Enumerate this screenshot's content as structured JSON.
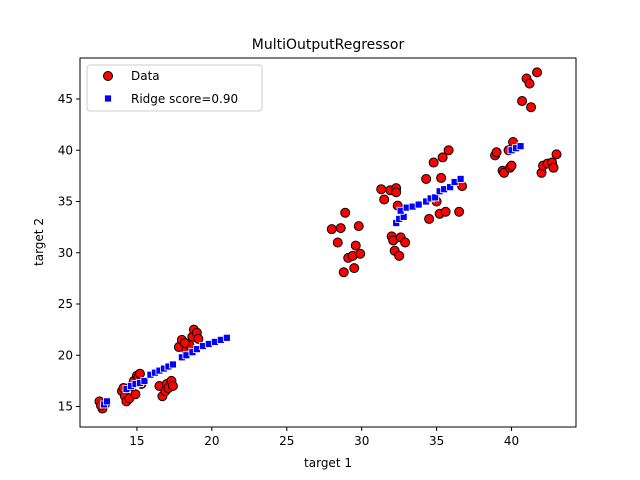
{
  "chart_data": {
    "type": "scatter",
    "title": "MultiOutputRegressor",
    "xlabel": "target 1",
    "ylabel": "target 2",
    "xlim": [
      11.2,
      44.3
    ],
    "ylim": [
      13.0,
      49.0
    ],
    "xticks": [
      15,
      20,
      25,
      30,
      35,
      40
    ],
    "yticks": [
      15,
      20,
      25,
      30,
      35,
      40,
      45
    ],
    "grid": false,
    "legend_position": "upper-left",
    "series": [
      {
        "name": "Data",
        "marker": "circle",
        "color": "#ff0000",
        "edgecolor": "#000000",
        "points": [
          [
            12.5,
            15.5
          ],
          [
            12.7,
            14.8
          ],
          [
            12.9,
            15.3
          ],
          [
            12.6,
            15.1
          ],
          [
            14.0,
            16.5
          ],
          [
            14.2,
            16.0
          ],
          [
            14.3,
            15.5
          ],
          [
            14.5,
            15.8
          ],
          [
            14.6,
            17.0
          ],
          [
            14.8,
            17.5
          ],
          [
            14.9,
            16.2
          ],
          [
            15.0,
            18.0
          ],
          [
            15.1,
            17.8
          ],
          [
            15.2,
            18.2
          ],
          [
            15.3,
            17.2
          ],
          [
            14.1,
            16.8
          ],
          [
            16.5,
            17.0
          ],
          [
            16.7,
            16.0
          ],
          [
            16.9,
            16.5
          ],
          [
            17.0,
            17.2
          ],
          [
            17.1,
            16.8
          ],
          [
            17.3,
            17.5
          ],
          [
            17.4,
            17.0
          ],
          [
            17.8,
            20.8
          ],
          [
            18.0,
            21.5
          ],
          [
            18.3,
            20.5
          ],
          [
            18.5,
            21.0
          ],
          [
            18.7,
            21.8
          ],
          [
            18.8,
            22.5
          ],
          [
            19.0,
            22.2
          ],
          [
            19.1,
            21.6
          ],
          [
            18.2,
            21.2
          ],
          [
            28.0,
            32.3
          ],
          [
            28.4,
            31.0
          ],
          [
            28.6,
            32.4
          ],
          [
            28.8,
            28.1
          ],
          [
            28.9,
            33.9
          ],
          [
            29.1,
            29.5
          ],
          [
            29.4,
            29.7
          ],
          [
            29.5,
            28.5
          ],
          [
            29.6,
            30.7
          ],
          [
            29.8,
            32.6
          ],
          [
            29.9,
            29.9
          ],
          [
            31.3,
            36.2
          ],
          [
            31.5,
            35.2
          ],
          [
            31.9,
            36.1
          ],
          [
            32.0,
            31.6
          ],
          [
            32.1,
            31.2
          ],
          [
            32.2,
            30.2
          ],
          [
            32.3,
            36.3
          ],
          [
            32.3,
            35.9
          ],
          [
            32.4,
            34.6
          ],
          [
            32.5,
            29.7
          ],
          [
            32.6,
            31.5
          ],
          [
            32.9,
            31.0
          ],
          [
            34.3,
            37.2
          ],
          [
            34.5,
            33.3
          ],
          [
            34.8,
            38.8
          ],
          [
            35.0,
            35.0
          ],
          [
            35.2,
            33.8
          ],
          [
            35.3,
            37.3
          ],
          [
            35.4,
            39.3
          ],
          [
            35.6,
            34.0
          ],
          [
            35.8,
            40.0
          ],
          [
            36.5,
            34.0
          ],
          [
            36.7,
            36.5
          ],
          [
            38.9,
            39.5
          ],
          [
            39.0,
            39.8
          ],
          [
            39.4,
            38.0
          ],
          [
            39.5,
            37.8
          ],
          [
            39.8,
            40.0
          ],
          [
            39.9,
            38.3
          ],
          [
            40.0,
            38.5
          ],
          [
            40.1,
            40.8
          ],
          [
            40.7,
            44.8
          ],
          [
            41.0,
            47.0
          ],
          [
            41.2,
            46.5
          ],
          [
            41.3,
            44.2
          ],
          [
            41.7,
            47.6
          ],
          [
            42.0,
            37.8
          ],
          [
            42.1,
            38.5
          ],
          [
            42.4,
            38.7
          ],
          [
            42.7,
            38.8
          ],
          [
            42.8,
            38.3
          ],
          [
            43.0,
            39.6
          ]
        ]
      },
      {
        "name": "Ridge score=0.90",
        "marker": "square",
        "color": "#0000ff",
        "edgecolor": "#ffffff",
        "points": [
          [
            12.8,
            15.2
          ],
          [
            13.0,
            15.5
          ],
          [
            14.3,
            16.7
          ],
          [
            14.6,
            17.0
          ],
          [
            14.9,
            17.2
          ],
          [
            15.2,
            17.3
          ],
          [
            15.5,
            17.5
          ],
          [
            15.9,
            18.1
          ],
          [
            16.2,
            18.3
          ],
          [
            16.5,
            18.5
          ],
          [
            16.8,
            18.7
          ],
          [
            17.1,
            18.9
          ],
          [
            17.4,
            19.1
          ],
          [
            18.0,
            19.8
          ],
          [
            18.3,
            20.0
          ],
          [
            18.7,
            20.3
          ],
          [
            19.0,
            20.6
          ],
          [
            19.4,
            20.9
          ],
          [
            19.8,
            21.1
          ],
          [
            20.2,
            21.3
          ],
          [
            20.6,
            21.5
          ],
          [
            21.0,
            21.7
          ],
          [
            32.3,
            32.9
          ],
          [
            32.5,
            33.3
          ],
          [
            32.8,
            33.5
          ],
          [
            32.6,
            34.1
          ],
          [
            33.0,
            34.4
          ],
          [
            33.4,
            34.5
          ],
          [
            33.8,
            34.7
          ],
          [
            34.3,
            35.0
          ],
          [
            34.6,
            35.3
          ],
          [
            34.9,
            35.4
          ],
          [
            35.2,
            36.0
          ],
          [
            35.5,
            36.2
          ],
          [
            35.9,
            36.4
          ],
          [
            36.2,
            36.9
          ],
          [
            36.6,
            37.2
          ],
          [
            40.0,
            40.0
          ],
          [
            40.3,
            40.2
          ],
          [
            40.6,
            40.4
          ]
        ]
      }
    ]
  }
}
